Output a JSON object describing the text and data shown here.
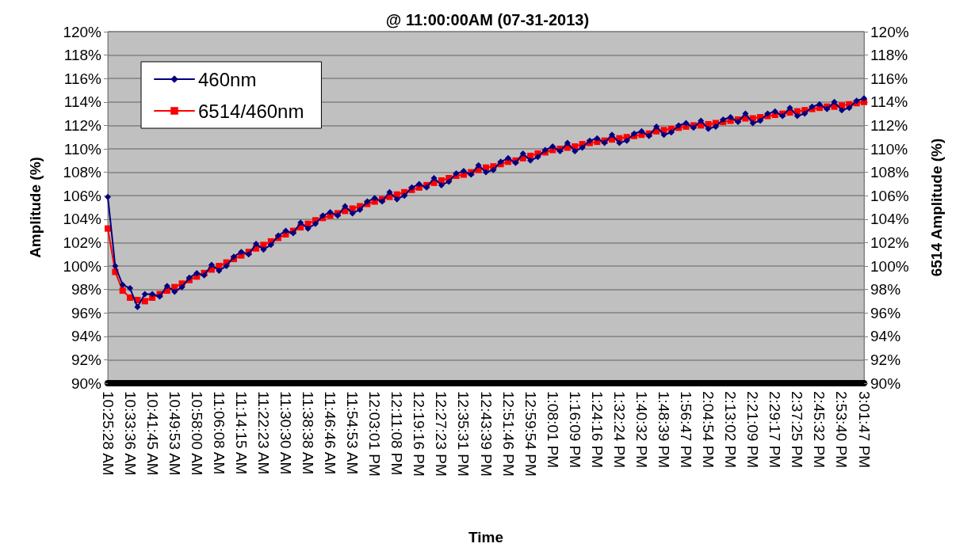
{
  "chart_data": {
    "type": "line",
    "title": "@ 11:00:00AM (07-31-2013)",
    "xlabel": "Time",
    "ylabel": "Amplitude (%)",
    "y2label": "6514 Amplitude (%)",
    "categories": [
      "10:25:28 AM",
      null,
      null,
      "10:33:36 AM",
      null,
      null,
      "10:41:45 AM",
      null,
      null,
      "10:49:53 AM",
      null,
      null,
      "10:58:00 AM",
      null,
      null,
      "11:06:08 AM",
      null,
      null,
      "11:14:15 AM",
      null,
      null,
      "11:22:23 AM",
      null,
      null,
      "11:30:30 AM",
      null,
      null,
      "11:38:38 AM",
      null,
      null,
      "11:46:46 AM",
      null,
      null,
      "11:54:53 AM",
      null,
      null,
      "12:03:01 PM",
      null,
      null,
      "12:11:08 PM",
      null,
      null,
      "12:19:16 PM",
      null,
      null,
      "12:27:23 PM",
      null,
      null,
      "12:35:31 PM",
      null,
      null,
      "12:43:39 PM",
      null,
      null,
      "12:51:46 PM",
      null,
      null,
      "12:59:54 PM",
      null,
      null,
      "1:08:01 PM",
      null,
      null,
      "1:16:09 PM",
      null,
      null,
      "1:24:16 PM",
      null,
      null,
      "1:32:24 PM",
      null,
      null,
      "1:40:32 PM",
      null,
      null,
      "1:48:39 PM",
      null,
      null,
      "1:56:47 PM",
      null,
      null,
      "2:04:54 PM",
      null,
      null,
      "2:13:02 PM",
      null,
      null,
      "2:21:09 PM",
      null,
      null,
      "2:29:17 PM",
      null,
      null,
      "2:37:25 PM",
      null,
      null,
      "2:45:32 PM",
      null,
      null,
      "2:53:40 PM",
      null,
      null,
      "3:01:47 PM"
    ],
    "series": [
      {
        "name": "460nm",
        "color": "#000080",
        "marker": "diamond",
        "values": [
          105.9,
          100.0,
          98.4,
          98.1,
          96.5,
          97.6,
          97.6,
          97.4,
          98.3,
          97.8,
          98.2,
          99.0,
          99.4,
          99.2,
          100.1,
          99.6,
          100.0,
          100.8,
          101.2,
          101.0,
          101.9,
          101.4,
          101.8,
          102.6,
          103.0,
          102.8,
          103.7,
          103.2,
          103.6,
          104.3,
          104.6,
          104.3,
          105.1,
          104.5,
          104.8,
          105.5,
          105.8,
          105.5,
          106.3,
          105.7,
          106.0,
          106.7,
          107.0,
          106.7,
          107.5,
          106.9,
          107.2,
          107.9,
          108.1,
          107.8,
          108.6,
          108.0,
          108.2,
          108.9,
          109.2,
          108.8,
          109.6,
          109.0,
          109.3,
          109.9,
          110.2,
          109.8,
          110.5,
          109.8,
          110.1,
          110.7,
          110.9,
          110.5,
          111.2,
          110.5,
          110.7,
          111.3,
          111.5,
          111.1,
          111.9,
          111.2,
          111.4,
          112.0,
          112.2,
          111.8,
          112.4,
          111.7,
          111.9,
          112.5,
          112.7,
          112.3,
          113.0,
          112.2,
          112.4,
          113.0,
          113.2,
          112.8,
          113.5,
          112.8,
          113.0,
          113.6,
          113.8,
          113.4,
          114.0,
          113.3,
          113.5,
          114.1,
          114.3
        ]
      },
      {
        "name": "6514/460nm",
        "color": "#ff0000",
        "marker": "square",
        "values": [
          103.2,
          99.5,
          97.9,
          97.3,
          97.1,
          97.0,
          97.3,
          97.6,
          97.9,
          98.2,
          98.5,
          98.8,
          99.1,
          99.4,
          99.7,
          100.0,
          100.3,
          100.6,
          100.9,
          101.2,
          101.5,
          101.8,
          102.1,
          102.4,
          102.7,
          103.0,
          103.3,
          103.6,
          103.9,
          104.1,
          104.3,
          104.5,
          104.7,
          104.9,
          105.1,
          105.3,
          105.5,
          105.7,
          105.9,
          106.1,
          106.3,
          106.5,
          106.7,
          106.9,
          107.1,
          107.3,
          107.5,
          107.7,
          107.8,
          108.0,
          108.2,
          108.4,
          108.5,
          108.7,
          108.9,
          109.0,
          109.2,
          109.4,
          109.6,
          109.7,
          109.9,
          110.0,
          110.1,
          110.2,
          110.4,
          110.5,
          110.6,
          110.7,
          110.8,
          110.9,
          111.0,
          111.1,
          111.2,
          111.3,
          111.5,
          111.6,
          111.7,
          111.8,
          111.9,
          112.0,
          112.0,
          112.1,
          112.2,
          112.3,
          112.4,
          112.5,
          112.6,
          112.6,
          112.7,
          112.8,
          112.9,
          113.0,
          113.1,
          113.2,
          113.3,
          113.4,
          113.5,
          113.6,
          113.6,
          113.7,
          113.8,
          113.9,
          114.0
        ]
      }
    ],
    "ylim": [
      90,
      120
    ],
    "yticks": [
      {
        "value": 90,
        "label": "90%"
      },
      {
        "value": 92,
        "label": "92%"
      },
      {
        "value": 94,
        "label": "94%"
      },
      {
        "value": 96,
        "label": "96%"
      },
      {
        "value": 98,
        "label": "98%"
      },
      {
        "value": 100,
        "label": "100%"
      },
      {
        "value": 102,
        "label": "102%"
      },
      {
        "value": 104,
        "label": "104%"
      },
      {
        "value": 106,
        "label": "106%"
      },
      {
        "value": 108,
        "label": "108%"
      },
      {
        "value": 110,
        "label": "110%"
      },
      {
        "value": 112,
        "label": "112%"
      },
      {
        "value": 114,
        "label": "114%"
      },
      {
        "value": 116,
        "label": "116%"
      },
      {
        "value": 118,
        "label": "118%"
      },
      {
        "value": 120,
        "label": "120%"
      }
    ],
    "y2lim": [
      90,
      120
    ],
    "y2ticks": [
      {
        "value": 90,
        "label": "90%"
      },
      {
        "value": 92,
        "label": "92%"
      },
      {
        "value": 94,
        "label": "94%"
      },
      {
        "value": 96,
        "label": "96%"
      },
      {
        "value": 98,
        "label": "98%"
      },
      {
        "value": 100,
        "label": "100%"
      },
      {
        "value": 102,
        "label": "102%"
      },
      {
        "value": 104,
        "label": "104%"
      },
      {
        "value": 106,
        "label": "106%"
      },
      {
        "value": 108,
        "label": "108%"
      },
      {
        "value": 110,
        "label": "110%"
      },
      {
        "value": 112,
        "label": "112%"
      },
      {
        "value": 114,
        "label": "114%"
      },
      {
        "value": 116,
        "label": "116%"
      },
      {
        "value": 118,
        "label": "118%"
      },
      {
        "value": 120,
        "label": "120%"
      }
    ],
    "grid": "y",
    "legend": "top left",
    "line_style": "solid"
  }
}
